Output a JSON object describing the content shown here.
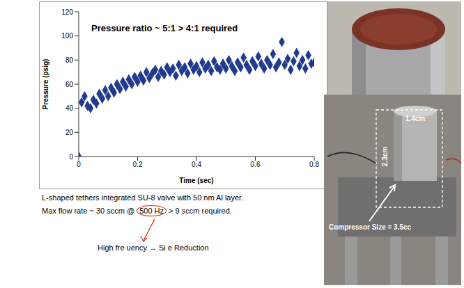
{
  "chart_data": {
    "type": "scatter",
    "title": "Pressure ratio ~ 5:1 > 4:1 required",
    "x_label": "Time (sec)",
    "y_label": "Pressure (psig)",
    "x": [
      0,
      0.01,
      0.02,
      0.03,
      0.04,
      0.05,
      0.06,
      0.07,
      0.08,
      0.09,
      0.1,
      0.11,
      0.12,
      0.13,
      0.14,
      0.15,
      0.16,
      0.17,
      0.18,
      0.19,
      0.2,
      0.21,
      0.22,
      0.23,
      0.24,
      0.25,
      0.26,
      0.27,
      0.28,
      0.29,
      0.3,
      0.31,
      0.32,
      0.33,
      0.34,
      0.35,
      0.36,
      0.37,
      0.38,
      0.39,
      0.4,
      0.41,
      0.42,
      0.43,
      0.44,
      0.45,
      0.46,
      0.47,
      0.48,
      0.49,
      0.5,
      0.51,
      0.52,
      0.53,
      0.54,
      0.55,
      0.56,
      0.57,
      0.58,
      0.59,
      0.6,
      0.61,
      0.62,
      0.63,
      0.64,
      0.65,
      0.66,
      0.67,
      0.68,
      0.69,
      0.7,
      0.71,
      0.72,
      0.73,
      0.74,
      0.75,
      0.76,
      0.77,
      0.78,
      0.79,
      0.8
    ],
    "values": [
      0,
      45,
      50,
      42,
      40,
      47,
      44,
      52,
      48,
      55,
      50,
      57,
      53,
      60,
      56,
      62,
      58,
      64,
      60,
      66,
      62,
      67,
      63,
      70,
      65,
      69,
      72,
      66,
      71,
      68,
      74,
      70,
      73,
      67,
      76,
      71,
      74,
      69,
      77,
      72,
      75,
      70,
      78,
      73,
      76,
      71,
      79,
      74,
      72,
      77,
      73,
      80,
      75,
      71,
      78,
      74,
      82,
      76,
      72,
      79,
      75,
      83,
      77,
      73,
      80,
      76,
      85,
      74,
      78,
      95,
      76,
      81,
      72,
      79,
      86,
      75,
      80,
      73,
      84,
      77,
      78
    ],
    "color": "#1f3a8f",
    "marker": "diamond",
    "grid": false,
    "xlim": [
      0,
      0.8
    ],
    "xticks": [
      0,
      0.2,
      0.4,
      0.6,
      0.8
    ],
    "ylim": [
      0,
      120
    ],
    "yticks": [
      0,
      20,
      40,
      60,
      80,
      100,
      120
    ]
  },
  "notes": {
    "line1": "L-shaped tethers integrated SU-8 valve with 50 nm Al layer.",
    "line2_before": "Max flow rate ~ 30 sccm @",
    "line2_circled": "500 Hz",
    "line2_after": "> 9 sccm required.",
    "arrow_note": "High fre uency → Si e Reduction"
  },
  "photo": {
    "width_label": "1.4cm",
    "height_label": "2.3cm",
    "size_label": "Compressor Size = 3.5cc"
  }
}
